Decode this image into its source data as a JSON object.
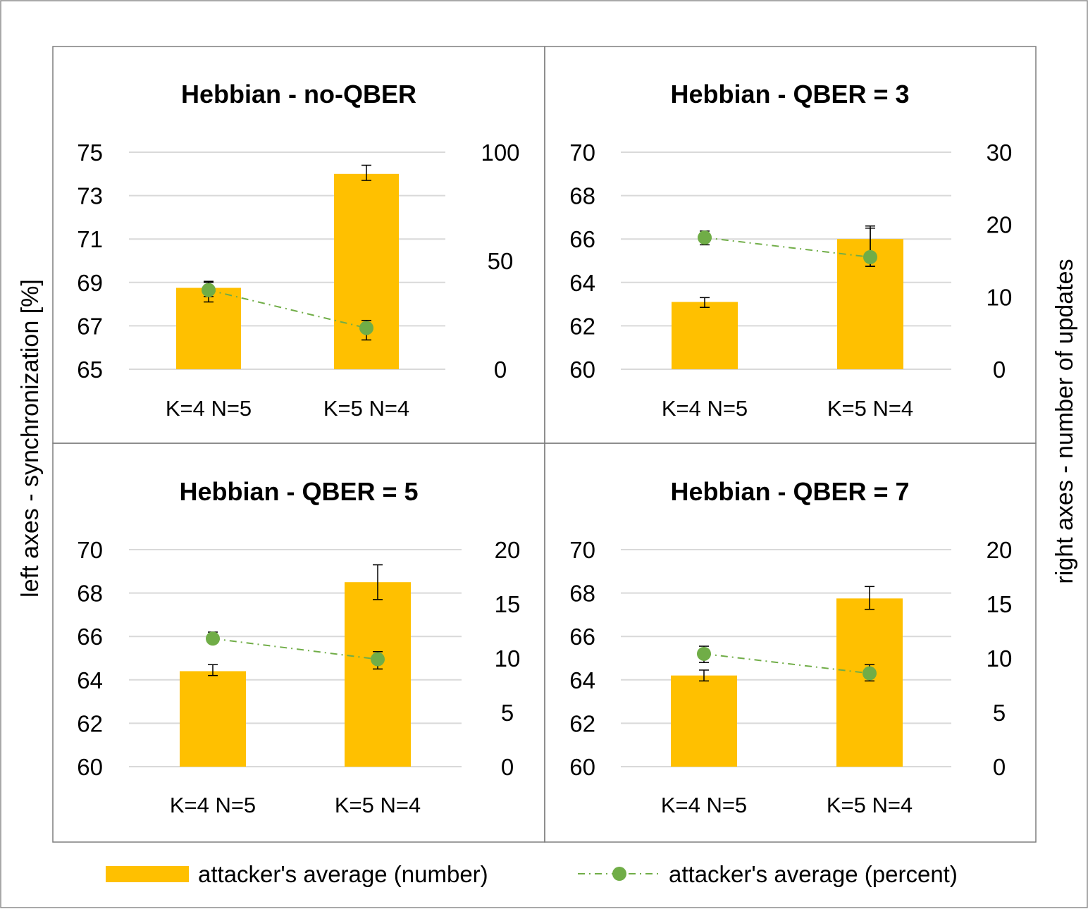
{
  "figure": {
    "left_axis_label": "left axes - synchronization [%]",
    "right_axis_label": "right axes - number of updates",
    "legend": {
      "bar_label": "attacker's average (number)",
      "line_label": "attacker's average (percent)"
    },
    "colors": {
      "bar": "#FFC000",
      "line": "#70AD47",
      "grid": "#D9D9D9",
      "border": "#8C8C8C",
      "text": "#000000"
    }
  },
  "chart_data": [
    {
      "type": "bar",
      "title": "Hebbian - no-QBER",
      "categories": [
        "K=4 N=5",
        "K=5 N=4"
      ],
      "left_ylim": [
        65,
        75
      ],
      "left_ticks": [
        "65",
        "67",
        "69",
        "71",
        "73",
        "75"
      ],
      "right_ylim": [
        0,
        100
      ],
      "right_ticks": [
        "0",
        "50",
        "100"
      ],
      "series": [
        {
          "name": "attacker's average (number)",
          "axis": "left",
          "kind": "bar",
          "values": [
            68.75,
            74.0
          ],
          "err_low": [
            68.35,
            73.7
          ],
          "err_high": [
            69.05,
            74.4
          ]
        },
        {
          "name": "attacker's average (percent)",
          "axis": "right",
          "kind": "line",
          "values": [
            36.5,
            19.0
          ],
          "err_low": [
            31.0,
            13.5
          ],
          "err_high": [
            40.0,
            22.5
          ]
        }
      ]
    },
    {
      "type": "bar",
      "title": "Hebbian - QBER = 3",
      "categories": [
        "K=4 N=5",
        "K=5 N=4"
      ],
      "left_ylim": [
        60,
        70
      ],
      "left_ticks": [
        "60",
        "62",
        "64",
        "66",
        "68",
        "70"
      ],
      "right_ylim": [
        0,
        30
      ],
      "right_ticks": [
        "0",
        "10",
        "20",
        "30"
      ],
      "series": [
        {
          "name": "attacker's average (number)",
          "axis": "left",
          "kind": "bar",
          "values": [
            63.1,
            66.0
          ],
          "err_low": [
            62.85,
            64.75
          ],
          "err_high": [
            63.3,
            66.6
          ]
        },
        {
          "name": "attacker's average (percent)",
          "axis": "right",
          "kind": "line",
          "values": [
            18.2,
            15.5
          ],
          "err_low": [
            17.2,
            14.2
          ],
          "err_high": [
            19.1,
            19.5
          ]
        }
      ]
    },
    {
      "type": "bar",
      "title": "Hebbian - QBER = 5",
      "categories": [
        "K=4 N=5",
        "K=5 N=4"
      ],
      "left_ylim": [
        60,
        70
      ],
      "left_ticks": [
        "60",
        "62",
        "64",
        "66",
        "68",
        "70"
      ],
      "right_ylim": [
        0,
        20
      ],
      "right_ticks": [
        "0",
        "5",
        "10",
        "15",
        "20"
      ],
      "series": [
        {
          "name": "attacker's average (number)",
          "axis": "left",
          "kind": "bar",
          "values": [
            64.4,
            68.5
          ],
          "err_low": [
            64.2,
            67.7
          ],
          "err_high": [
            64.7,
            69.3
          ]
        },
        {
          "name": "attacker's average (percent)",
          "axis": "right",
          "kind": "line",
          "values": [
            11.8,
            9.9
          ],
          "err_low": [
            11.4,
            9.0
          ],
          "err_high": [
            12.4,
            10.6
          ]
        }
      ]
    },
    {
      "type": "bar",
      "title": "Hebbian - QBER = 7",
      "categories": [
        "K=4 N=5",
        "K=5 N=4"
      ],
      "left_ylim": [
        60,
        70
      ],
      "left_ticks": [
        "60",
        "62",
        "64",
        "66",
        "68",
        "70"
      ],
      "right_ylim": [
        0,
        20
      ],
      "right_ticks": [
        "0",
        "5",
        "10",
        "15",
        "20"
      ],
      "series": [
        {
          "name": "attacker's average (number)",
          "axis": "left",
          "kind": "bar",
          "values": [
            64.2,
            67.75
          ],
          "err_low": [
            63.95,
            67.25
          ],
          "err_high": [
            64.45,
            68.3
          ]
        },
        {
          "name": "attacker's average (percent)",
          "axis": "right",
          "kind": "line",
          "values": [
            10.4,
            8.6
          ],
          "err_low": [
            9.6,
            7.9
          ],
          "err_high": [
            11.1,
            9.4
          ]
        }
      ]
    }
  ]
}
